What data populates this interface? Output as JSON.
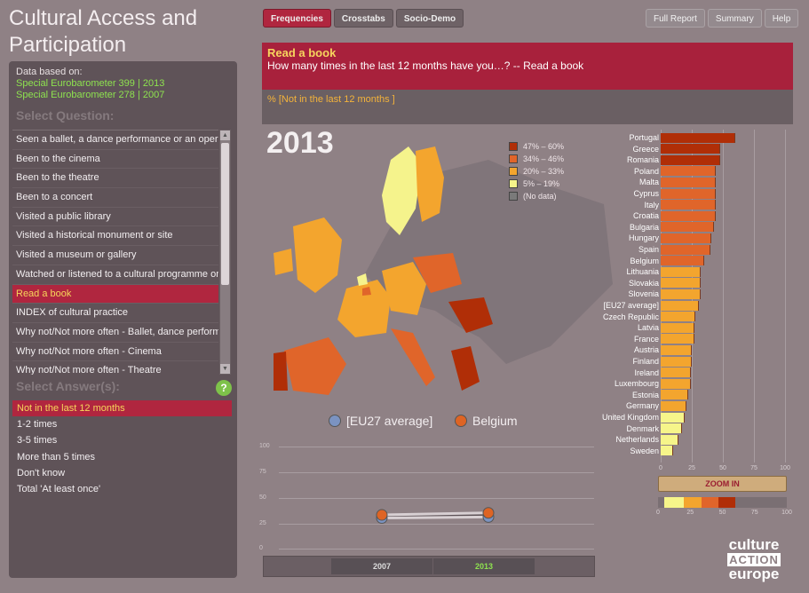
{
  "app_title": "Cultural Access and Participation",
  "tabs": [
    "Frequencies",
    "Crosstabs",
    "Socio-Demo"
  ],
  "right_tabs": [
    "Full Report",
    "Summary",
    "Help"
  ],
  "left": {
    "data_based_on": "Data based on:",
    "sources": [
      "Special Eurobarometer 399  |  2013",
      "Special Eurobarometer 278  |  2007"
    ],
    "select_question": "Select Question:",
    "questions": [
      "Seen a ballet, a dance performance or an opera",
      "Been to the cinema",
      "Been to the theatre",
      "Been to a concert",
      "Visited a public library",
      "Visited a historical monument or site",
      "Visited a museum or gallery",
      "Watched or listened to a cultural programme on",
      "Read a book",
      "INDEX of cultural practice",
      "Why not/Not more often - Ballet, dance perform",
      "Why not/Not more often - Cinema",
      "Why not/Not more often - Theatre"
    ],
    "selected_question": 8,
    "select_answers": "Select Answer(s):",
    "help_icon": "?",
    "answers": [
      "Not in the last 12 months",
      "1-2 times",
      "3-5 times",
      "More than 5 times",
      "Don't know",
      "Total 'At least once'"
    ],
    "selected_answer": 0
  },
  "question": {
    "title": "Read a book",
    "text": "How many times in the last 12 months have you…? -- Read a book",
    "answer": "% [Not in the last 12 months ]"
  },
  "map": {
    "year": "2013",
    "legend": [
      {
        "label": "47% – 60%",
        "color": "#b02e07"
      },
      {
        "label": "34% – 46%",
        "color": "#e0652a"
      },
      {
        "label": "20% – 33%",
        "color": "#f3a52e"
      },
      {
        "label": "5% – 19%",
        "color": "#f6f58a"
      },
      {
        "label": "(No data)",
        "color": "#7a7a7a"
      }
    ]
  },
  "series_labels": [
    "[EU27 average]",
    "Belgium"
  ],
  "series_colors": [
    "#7b93c1",
    "#de6424"
  ],
  "line_chart": {
    "y_ticks": [
      "100",
      "75",
      "50",
      "25",
      "0"
    ],
    "years": [
      "2007",
      "2013"
    ],
    "eu27": [
      30,
      31
    ],
    "belgium": [
      33,
      35
    ]
  },
  "chart_data": {
    "type": "bar",
    "title": "",
    "categories": [
      "Portugal",
      "Greece",
      "Romania",
      "Poland",
      "Malta",
      "Cyprus",
      "Italy",
      "Croatia",
      "Bulgaria",
      "Hungary",
      "Spain",
      "Belgium",
      "Lithuania",
      "Slovakia",
      "Slovenia",
      "[EU27 average]",
      "Czech Republic",
      "Latvia",
      "France",
      "Austria",
      "Finland",
      "Ireland",
      "Luxembourg",
      "Estonia",
      "Germany",
      "United Kingdom",
      "Denmark",
      "Netherlands",
      "Sweden"
    ],
    "values": [
      60,
      48,
      48,
      44,
      44,
      44,
      44,
      44,
      43,
      41,
      40,
      35,
      32,
      32,
      32,
      31,
      28,
      27,
      27,
      25,
      25,
      24,
      24,
      22,
      21,
      19,
      17,
      14,
      10
    ],
    "xlim": [
      0,
      100
    ],
    "x_ticks": [
      "0",
      "25",
      "50",
      "75",
      "100"
    ]
  },
  "zoom_label": "ZOOM IN",
  "mini_ticks": [
    "0",
    "25",
    "50",
    "75",
    "100"
  ],
  "logo": {
    "line1": "culture",
    "line2": "ACTION",
    "line3": "europe"
  }
}
